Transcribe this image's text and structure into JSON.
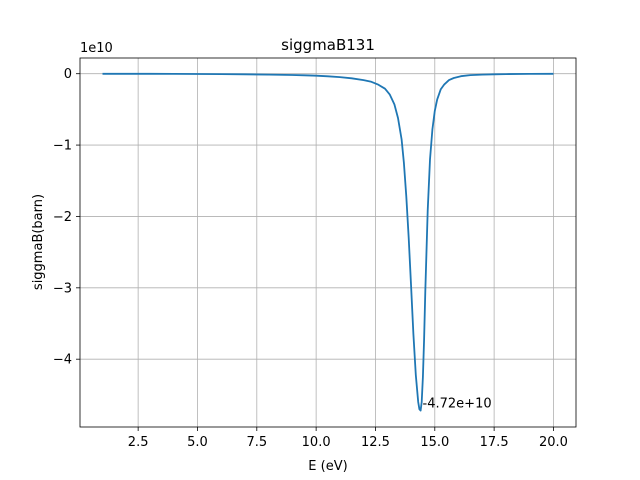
{
  "chart_data": {
    "type": "line",
    "title": "siggmaB131",
    "xlabel": "E (eV)",
    "ylabel": "siggmaB(barn)",
    "offset_label": "1e10",
    "xlim": [
      0.05,
      20.95
    ],
    "ylim": [
      -4.95,
      0.22
    ],
    "xticks": [
      2.5,
      5.0,
      7.5,
      10.0,
      12.5,
      15.0,
      17.5,
      20.0
    ],
    "xtick_labels": [
      "2.5",
      "5.0",
      "7.5",
      "10.0",
      "12.5",
      "15.0",
      "17.5",
      "20.0"
    ],
    "yticks": [
      0,
      -1,
      -2,
      -3,
      -4
    ],
    "ytick_labels": [
      "0",
      "−1",
      "−2",
      "−3",
      "−4"
    ],
    "grid": true,
    "series": [
      {
        "color": "#1f77b4",
        "x": [
          1.0,
          2.0,
          3.0,
          4.0,
          5.0,
          6.0,
          7.0,
          8.0,
          9.0,
          9.5,
          10.0,
          10.5,
          11.0,
          11.5,
          12.0,
          12.3,
          12.6,
          12.9,
          13.1,
          13.3,
          13.45,
          13.6,
          13.7,
          13.8,
          13.9,
          14.0,
          14.1,
          14.2,
          14.3,
          14.35,
          14.4,
          14.45,
          14.5,
          14.55,
          14.6,
          14.7,
          14.8,
          14.9,
          15.0,
          15.1,
          15.25,
          15.4,
          15.6,
          15.8,
          16.1,
          16.5,
          17.0,
          17.5,
          18.0,
          19.0,
          20.0
        ],
        "y": [
          -0.001,
          -0.0015,
          -0.002,
          -0.003,
          -0.004,
          -0.006,
          -0.008,
          -0.012,
          -0.018,
          -0.022,
          -0.028,
          -0.036,
          -0.048,
          -0.065,
          -0.09,
          -0.11,
          -0.15,
          -0.21,
          -0.29,
          -0.43,
          -0.62,
          -0.92,
          -1.25,
          -1.72,
          -2.3,
          -2.98,
          -3.65,
          -4.22,
          -4.6,
          -4.7,
          -4.72,
          -4.6,
          -4.25,
          -3.72,
          -3.05,
          -1.92,
          -1.2,
          -0.78,
          -0.52,
          -0.36,
          -0.22,
          -0.15,
          -0.09,
          -0.06,
          -0.035,
          -0.02,
          -0.012,
          -0.008,
          -0.006,
          -0.003,
          -0.002
        ]
      }
    ],
    "annotations": [
      {
        "text": "-4.72e+10",
        "x": 14.4,
        "y": -4.72
      }
    ]
  }
}
